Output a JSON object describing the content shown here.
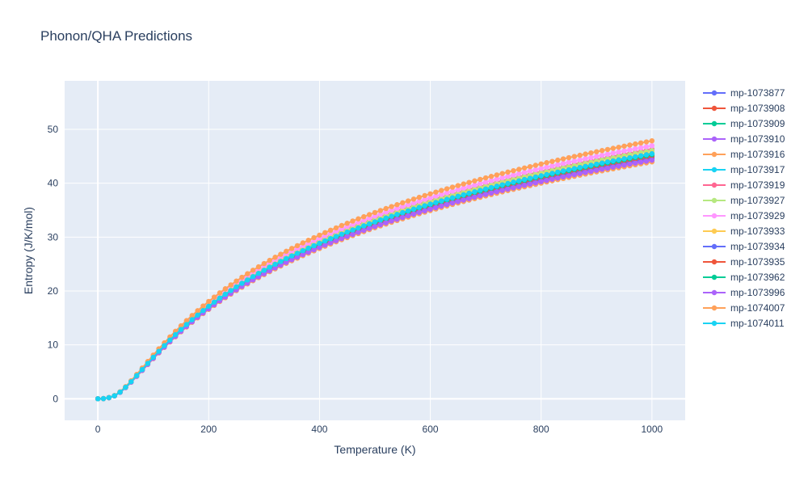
{
  "chart_data": {
    "type": "line",
    "title": "Phonon/QHA Predictions",
    "xlabel": "Temperature (K)",
    "ylabel": "Entropy (J/K/mol)",
    "xlim": [
      -60,
      1060
    ],
    "ylim": [
      -4,
      59
    ],
    "x_ticks": [
      0,
      200,
      400,
      600,
      800,
      1000
    ],
    "y_ticks": [
      0,
      10,
      20,
      30,
      40,
      50
    ],
    "grid": true,
    "legend_position": "right",
    "x": [
      0,
      10,
      20,
      30,
      40,
      50,
      60,
      70,
      80,
      90,
      100,
      110,
      120,
      130,
      140,
      150,
      160,
      170,
      180,
      190,
      200,
      210,
      220,
      230,
      240,
      250,
      260,
      270,
      280,
      290,
      300,
      310,
      320,
      330,
      340,
      350,
      360,
      370,
      380,
      390,
      400,
      410,
      420,
      430,
      440,
      450,
      460,
      470,
      480,
      490,
      500,
      510,
      520,
      530,
      540,
      550,
      560,
      570,
      580,
      590,
      600,
      610,
      620,
      630,
      640,
      650,
      660,
      670,
      680,
      690,
      700,
      710,
      720,
      730,
      740,
      750,
      760,
      770,
      780,
      790,
      800,
      810,
      820,
      830,
      840,
      850,
      860,
      870,
      880,
      890,
      900,
      910,
      920,
      930,
      940,
      950,
      960,
      970,
      980,
      990,
      1000
    ],
    "series": [
      {
        "name": "mp-1073877",
        "color": "#636efa",
        "scale": 1.0,
        "shift": 0.0
      },
      {
        "name": "mp-1073908",
        "color": "#ef553b",
        "scale": 1.005,
        "shift": 0.0
      },
      {
        "name": "mp-1073909",
        "color": "#00cc96",
        "scale": 1.01,
        "shift": 0.0
      },
      {
        "name": "mp-1073910",
        "color": "#ab63fa",
        "scale": 0.99,
        "shift": 0.0
      },
      {
        "name": "mp-1073916",
        "color": "#ffa15a",
        "scale": 0.978,
        "shift": 0.0
      },
      {
        "name": "mp-1073917",
        "color": "#19d3f3",
        "scale": 1.0,
        "shift": 0.0
      },
      {
        "name": "mp-1073919",
        "color": "#ff6692",
        "scale": 1.03,
        "shift": 0.0
      },
      {
        "name": "mp-1073927",
        "color": "#b6e880",
        "scale": 1.025,
        "shift": 0.0
      },
      {
        "name": "mp-1073929",
        "color": "#ff97ff",
        "scale": 1.045,
        "shift": 0.0
      },
      {
        "name": "mp-1073933",
        "color": "#fecb52",
        "scale": 1.015,
        "shift": 0.0
      },
      {
        "name": "mp-1073934",
        "color": "#636efa",
        "scale": 0.995,
        "shift": 0.0
      },
      {
        "name": "mp-1073935",
        "color": "#ef553b",
        "scale": 1.002,
        "shift": 0.0
      },
      {
        "name": "mp-1073962",
        "color": "#00cc96",
        "scale": 1.008,
        "shift": 0.0
      },
      {
        "name": "mp-1073996",
        "color": "#ab63fa",
        "scale": 0.985,
        "shift": 0.0
      },
      {
        "name": "mp-1074007",
        "color": "#ffa15a",
        "scale": 1.065,
        "shift": 0.0
      },
      {
        "name": "mp-1074011",
        "color": "#19d3f3",
        "scale": 1.012,
        "shift": 0.0
      }
    ],
    "base_values": [
      0.0,
      0.03,
      0.21,
      0.56,
      1.22,
      2.11,
      3.14,
      4.24,
      5.36,
      6.49,
      7.61,
      8.7,
      9.75,
      10.77,
      11.76,
      12.71,
      13.62,
      14.5,
      15.35,
      16.17,
      16.96,
      17.72,
      18.46,
      19.17,
      19.85,
      20.52,
      21.17,
      21.79,
      22.4,
      22.99,
      23.56,
      24.12,
      24.66,
      25.18,
      25.7,
      26.2,
      26.68,
      27.16,
      27.62,
      28.07,
      28.51,
      28.95,
      29.37,
      29.78,
      30.19,
      30.58,
      30.97,
      31.35,
      31.72,
      32.09,
      32.45,
      32.8,
      33.15,
      33.49,
      33.82,
      34.15,
      34.47,
      34.79,
      35.1,
      35.41,
      35.71,
      36.01,
      36.3,
      36.59,
      36.87,
      37.15,
      37.43,
      37.7,
      37.97,
      38.23,
      38.49,
      38.75,
      39.0,
      39.25,
      39.5,
      39.74,
      39.98,
      40.22,
      40.45,
      40.68,
      40.91,
      41.14,
      41.36,
      41.58,
      41.8,
      42.01,
      42.22,
      42.43,
      42.64,
      42.84,
      43.05,
      43.25,
      43.44,
      43.64,
      43.83,
      44.02,
      44.21,
      44.4,
      44.58,
      44.76,
      44.95
    ]
  },
  "legend_entries": [
    "mp-1073877",
    "mp-1073908",
    "mp-1073909",
    "mp-1073910",
    "mp-1073916",
    "mp-1073917",
    "mp-1073919",
    "mp-1073927",
    "mp-1073929",
    "mp-1073933",
    "mp-1073934",
    "mp-1073935",
    "mp-1073962",
    "mp-1073996",
    "mp-1074007",
    "mp-1074011"
  ],
  "colors": {
    "plot_bg": "#e5ecf6",
    "grid": "#ffffff",
    "text": "#2a3f5f"
  }
}
